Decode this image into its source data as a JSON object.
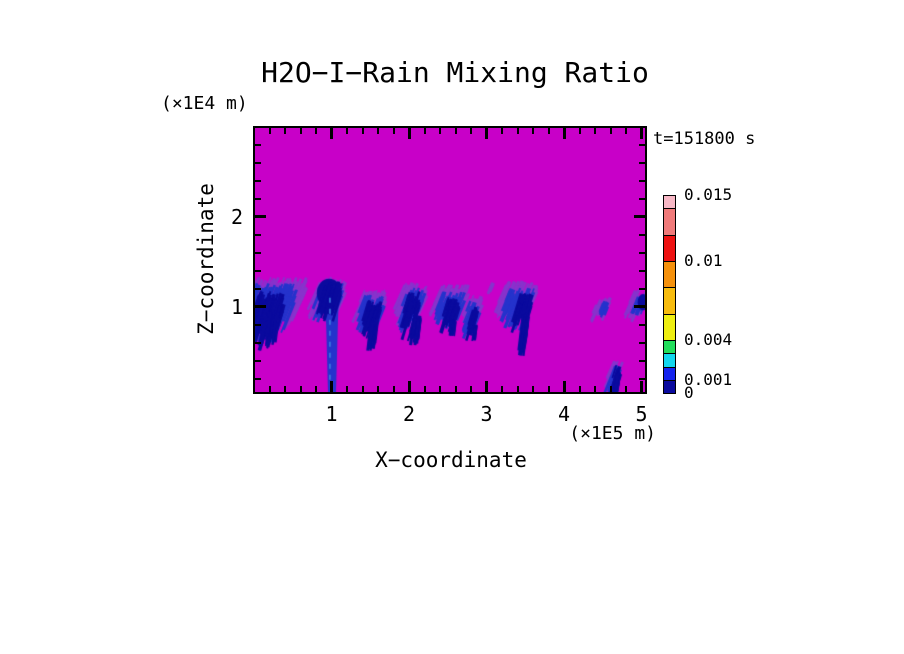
{
  "page": {
    "title": "H2O−I−Rain Mixing Ratio",
    "timestamp": "t=151800 s",
    "z_unit_label": "(×1E4 m)",
    "x_unit_label": "(×1E5 m)",
    "x_axis_label": "X−coordinate",
    "z_axis_label": "Z−coordinate"
  },
  "chart_data": {
    "type": "heatmap",
    "title": "H2O-I-Rain Mixing Ratio",
    "time_label": "t=151800 s",
    "xlabel": "X-coordinate",
    "x_unit": "×1E5 m",
    "ylabel": "Z-coordinate",
    "y_unit": "×1E4 m",
    "x_range": [
      0.0,
      5.05
    ],
    "z_range": [
      0.05,
      2.98
    ],
    "x_major_ticks": [
      1,
      2,
      3,
      4,
      5
    ],
    "x_minor_step": 0.2,
    "z_major_ticks": [
      1,
      2
    ],
    "z_minor_step": 0.2,
    "grid": false,
    "legend_position": "right",
    "colorbar": {
      "levels": [
        0,
        0.001,
        0.002,
        0.003,
        0.004,
        0.006,
        0.008,
        0.01,
        0.012,
        0.014,
        0.015
      ],
      "segment_colors": [
        "#0A0A9E",
        "#1423EE",
        "#12D6EE",
        "#22DE5C",
        "#EFEF12",
        "#F7BC0E",
        "#F5910C",
        "#EE1212",
        "#F07A7A",
        "#F8B8C6"
      ],
      "labeled_values": [
        0.015,
        0.01,
        0.004,
        0.001,
        0
      ],
      "labels": [
        "0.015",
        "0.01",
        "0.004",
        "0.001",
        "0"
      ]
    },
    "field_colors": {
      "background": "#C800C8",
      "fringe": "#8833CC",
      "mid": "#2533CC",
      "core": "#0A0A9E",
      "inner_dash": "#3A7BE0"
    },
    "features": [
      {
        "id": "rain-cell-1",
        "fringe": [
          0.02,
          0.68,
          1.33,
          0.92,
          130
        ],
        "mid": [
          0.02,
          0.56,
          1.26,
          0.76,
          85
        ],
        "core": [
          0.05,
          0.4,
          1.18,
          0.66,
          60
        ],
        "tail": [
          0.13,
          0.33,
          0.95,
          0.58,
          22
        ]
      },
      {
        "id": "rain-cell-2-ground-shaft",
        "fringe": [
          0.85,
          1.19,
          1.33,
          0.95,
          48
        ],
        "mid": [
          0.89,
          1.15,
          1.28,
          0.9,
          36
        ],
        "column": [
          0.86,
          1.1,
          1.25,
          0.955,
          1.058
        ],
        "blob": [
          0.97,
          1.15,
          0.16,
          0.16
        ],
        "core": [
          0.92,
          1.13,
          1.28,
          0.95,
          40
        ],
        "dashes": [
          [
            0.98,
            1.1,
            0.15
          ]
        ]
      },
      {
        "id": "rain-cell-3",
        "fringe": [
          1.4,
          1.72,
          1.19,
          0.9,
          60
        ],
        "mid": [
          1.43,
          1.68,
          1.13,
          0.8,
          42
        ],
        "core": [
          1.47,
          1.64,
          1.07,
          0.76,
          30
        ],
        "tail": [
          1.51,
          1.6,
          0.88,
          0.56,
          18
        ]
      },
      {
        "id": "rain-cell-4",
        "fringe": [
          1.94,
          2.24,
          1.27,
          0.92,
          60
        ],
        "mid": [
          1.97,
          2.21,
          1.21,
          0.84,
          42
        ],
        "core": [
          2.0,
          2.15,
          1.17,
          0.78,
          30
        ],
        "tail": [
          2.06,
          2.16,
          0.9,
          0.6,
          16
        ]
      },
      {
        "id": "rain-cell-5",
        "fringe": [
          2.4,
          2.78,
          1.25,
          0.94,
          62
        ],
        "mid": [
          2.44,
          2.73,
          1.17,
          0.85,
          42
        ],
        "core": [
          2.5,
          2.65,
          1.11,
          0.8,
          28
        ],
        "tail": [
          2.54,
          2.62,
          0.86,
          0.68,
          12
        ]
      },
      {
        "id": "rain-cell-6",
        "fringe": [
          2.77,
          2.95,
          1.13,
          0.85,
          26
        ],
        "mid": [
          2.79,
          2.92,
          1.07,
          0.76,
          18
        ],
        "core": [
          2.81,
          2.9,
          1.01,
          0.7,
          13
        ],
        "tail": [
          2.84,
          2.89,
          0.8,
          0.62,
          8
        ]
      },
      {
        "id": "rain-speck-7",
        "fringe": [
          3.02,
          3.1,
          1.27,
          1.15,
          7
        ]
      },
      {
        "id": "rain-cell-8",
        "fringe": [
          3.24,
          3.67,
          1.29,
          0.96,
          70
        ],
        "mid": [
          3.3,
          3.63,
          1.21,
          0.87,
          46
        ],
        "core": [
          3.42,
          3.59,
          1.15,
          0.8,
          30
        ],
        "tail": [
          3.47,
          3.56,
          0.92,
          0.5,
          20
        ]
      },
      {
        "id": "rain-wisp-9",
        "fringe": [
          4.42,
          4.61,
          1.11,
          0.9,
          15
        ],
        "mid": [
          4.45,
          4.57,
          1.06,
          0.92,
          10
        ]
      },
      {
        "id": "rain-low-shaft-10",
        "fringe": [
          4.63,
          4.76,
          0.42,
          0.12,
          12
        ],
        "mid": [
          4.65,
          4.74,
          0.38,
          0.07,
          10
        ],
        "core": [
          4.67,
          4.73,
          0.35,
          0.05,
          10
        ],
        "tail": [
          4.69,
          4.72,
          0.28,
          0.04,
          8
        ]
      },
      {
        "id": "rain-edge-11",
        "fringe": [
          4.9,
          5.07,
          1.19,
          0.92,
          24
        ],
        "mid": [
          4.94,
          5.07,
          1.13,
          0.93,
          16
        ],
        "blob": [
          5.02,
          1.05,
          0.07,
          0.09
        ]
      }
    ]
  }
}
